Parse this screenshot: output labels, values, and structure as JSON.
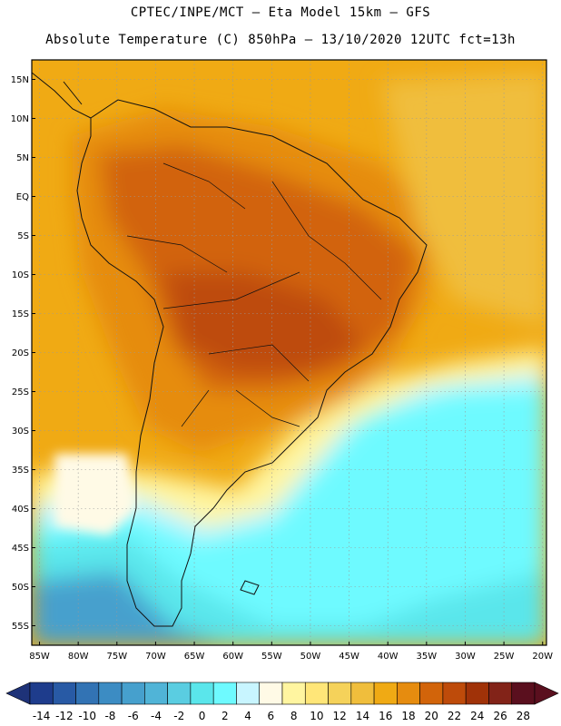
{
  "title": {
    "line1": "CPTEC/INPE/MCT –  Eta Model 15km – GFS",
    "line2": "Absolute Temperature (C) 850hPa – 13/10/2020 12UTC fct=13h"
  },
  "map": {
    "lat_labels": [
      "15N",
      "10N",
      "5N",
      "EQ",
      "5S",
      "10S",
      "15S",
      "20S",
      "25S",
      "30S",
      "35S",
      "40S",
      "45S",
      "50S",
      "55S"
    ],
    "lon_labels": [
      "85W",
      "80W",
      "75W",
      "70W",
      "65W",
      "60W",
      "55W",
      "50W",
      "45W",
      "40W",
      "35W",
      "30W",
      "25W",
      "20W"
    ],
    "lat_range": [
      17.5,
      -57.5
    ],
    "lon_range": [
      -86,
      -19.5
    ]
  },
  "colorbar": {
    "labels": [
      "-14",
      "-12",
      "-10",
      "-8",
      "-6",
      "-4",
      "-2",
      "0",
      "2",
      "4",
      "6",
      "8",
      "10",
      "12",
      "14",
      "16",
      "18",
      "20",
      "22",
      "24",
      "26",
      "28"
    ],
    "colors": [
      "#1e3c8c",
      "#285aa5",
      "#3273b4",
      "#3c8cc3",
      "#46a0cd",
      "#50b4d7",
      "#5acde1",
      "#5ae6eb",
      "#6efaff",
      "#c8f5ff",
      "#fffae6",
      "#fff5a0",
      "#ffe678",
      "#f5d25a",
      "#f0be3c",
      "#f0aa14",
      "#e68c0f",
      "#d2640a",
      "#be4b0a",
      "#a03208",
      "#822318",
      "#5a0f1e"
    ],
    "left_arrow_color": "#1e3278",
    "right_arrow_color": "#5a0f1e"
  },
  "chart_data": {
    "type": "heatmap",
    "title": "Absolute Temperature (C) 850hPa – 13/10/2020 12UTC fct=13h",
    "variable": "Absolute Temperature (C) at 850hPa",
    "x_axis": [
      "85W",
      "80W",
      "75W",
      "70W",
      "65W",
      "60W",
      "55W",
      "50W",
      "45W",
      "40W",
      "35W",
      "30W",
      "25W",
      "20W"
    ],
    "y_axis": [
      "15N",
      "10N",
      "5N",
      "EQ",
      "5S",
      "10S",
      "15S",
      "20S",
      "25S",
      "30S",
      "35S",
      "40S",
      "45S",
      "50S",
      "55S"
    ],
    "color_scale_min": -14,
    "color_scale_max": 28,
    "color_scale_step": 2
  }
}
